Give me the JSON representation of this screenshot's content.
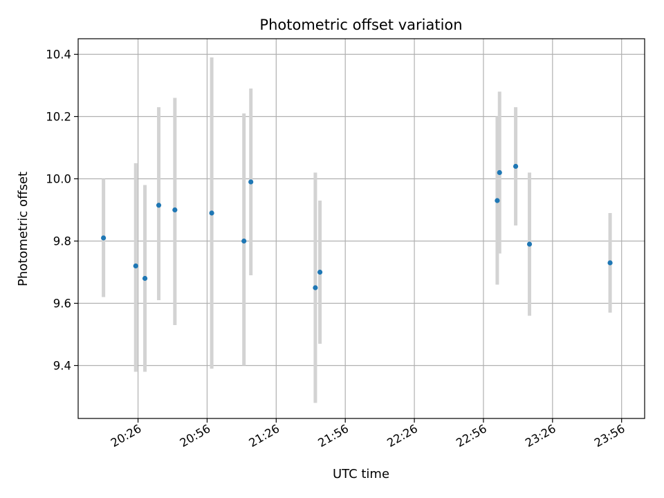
{
  "chart_data": {
    "type": "scatter",
    "title": "Photometric offset variation",
    "xlabel": "UTC time",
    "ylabel": "Photometric offset",
    "xlim": [
      "20:00",
      "24:06"
    ],
    "ylim": [
      9.23,
      10.45
    ],
    "grid": true,
    "xticks": [
      "20:26",
      "20:56",
      "21:26",
      "21:56",
      "22:26",
      "22:56",
      "23:26",
      "23:56"
    ],
    "yticks": [
      "9.4",
      "9.6",
      "9.8",
      "10.0",
      "10.2",
      "10.4"
    ],
    "points": [
      {
        "x": "20:11",
        "y": 9.81,
        "ylow": 9.62,
        "yhigh": 10.0
      },
      {
        "x": "20:25",
        "y": 9.72,
        "ylow": 9.38,
        "yhigh": 10.05
      },
      {
        "x": "20:29",
        "y": 9.68,
        "ylow": 9.38,
        "yhigh": 9.98
      },
      {
        "x": "20:35",
        "y": 9.915,
        "ylow": 9.61,
        "yhigh": 10.23
      },
      {
        "x": "20:42",
        "y": 9.9,
        "ylow": 9.53,
        "yhigh": 10.26
      },
      {
        "x": "20:58",
        "y": 9.89,
        "ylow": 9.39,
        "yhigh": 10.39
      },
      {
        "x": "21:12",
        "y": 9.8,
        "ylow": 9.4,
        "yhigh": 10.21
      },
      {
        "x": "21:15",
        "y": 9.99,
        "ylow": 9.69,
        "yhigh": 10.29
      },
      {
        "x": "21:43",
        "y": 9.65,
        "ylow": 9.28,
        "yhigh": 10.02
      },
      {
        "x": "21:45",
        "y": 9.7,
        "ylow": 9.47,
        "yhigh": 9.93
      },
      {
        "x": "23:02",
        "y": 9.93,
        "ylow": 9.66,
        "yhigh": 10.2
      },
      {
        "x": "23:03",
        "y": 10.02,
        "ylow": 9.76,
        "yhigh": 10.28
      },
      {
        "x": "23:10",
        "y": 10.04,
        "ylow": 9.85,
        "yhigh": 10.23
      },
      {
        "x": "23:16",
        "y": 9.79,
        "ylow": 9.56,
        "yhigh": 10.02
      },
      {
        "x": "23:51",
        "y": 9.73,
        "ylow": 9.57,
        "yhigh": 9.89
      }
    ],
    "colors": {
      "points": "#1f77b4",
      "errorbars": "#d3d3d3",
      "grid": "#b0b0b0"
    }
  }
}
